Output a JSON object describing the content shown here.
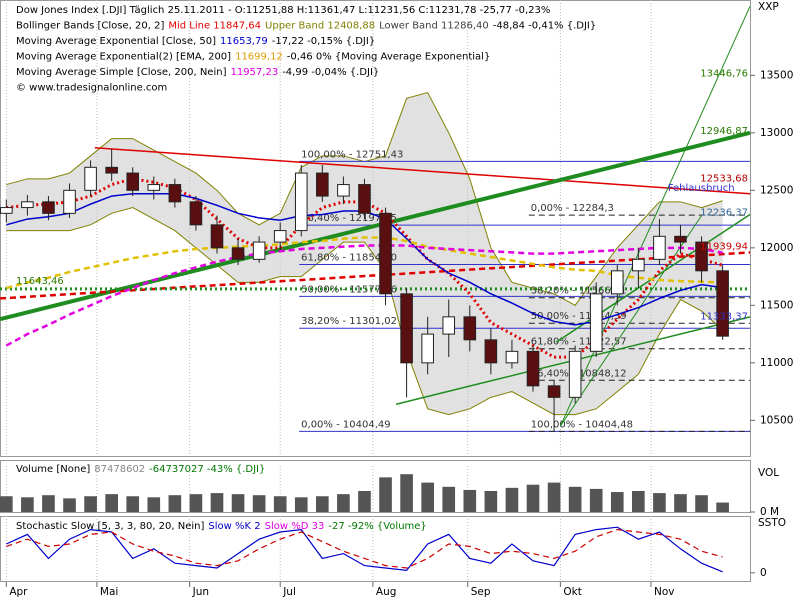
{
  "chart_data": [
    {
      "type": "candlestick",
      "axis_title": "XXP",
      "header": [
        [
          {
            "text": "Dow Jones Index [.DJI]  Täglich 25.11.2011  - O:11251,88 H:11361,47 L:11231,56 C:11231,78 -25,77 -0,23%",
            "color": "#000000"
          }
        ],
        [
          {
            "text": "Bollinger Bands [Close, 20, 2]",
            "color": "#000000"
          },
          {
            "text": "Mid Line 11847,64",
            "color": "#e00000"
          },
          {
            "text": "Upper Band 12408,88",
            "color": "#808000"
          },
          {
            "text": "Lower Band 11286,40",
            "color": "#404040"
          },
          {
            "text": "-48,84 -0,41% {.DJI}",
            "color": "#000000"
          }
        ],
        [
          {
            "text": "Moving Average Exponential [Close, 50]",
            "color": "#000000"
          },
          {
            "text": "11653,79",
            "color": "#0000cc"
          },
          {
            "text": "-17,22 -0,15% {.DJI}",
            "color": "#000000"
          }
        ],
        [
          {
            "text": "Moving Average Exponential(2) [EMA, 200]",
            "color": "#000000"
          },
          {
            "text": "11699,12",
            "color": "#e0a000"
          },
          {
            "text": "-0,46 0% {Moving Average Exponential}",
            "color": "#000000"
          }
        ],
        [
          {
            "text": "Moving Average Simple [Close, 200, Nein]",
            "color": "#000000"
          },
          {
            "text": "11957,23",
            "color": "#e000e0"
          },
          {
            "text": "-4,99 -0,04% {.DJI}",
            "color": "#000000"
          }
        ],
        [
          {
            "text": "© www.tradesignalonline.com",
            "color": "#000000"
          }
        ]
      ],
      "x": [
        0,
        1,
        2,
        3,
        4,
        5,
        6,
        7,
        8,
        9,
        10,
        11,
        12,
        13,
        14,
        15,
        16,
        17,
        18,
        19,
        20,
        21,
        22,
        23,
        24,
        25,
        26,
        27,
        28,
        29,
        30,
        31,
        32,
        33,
        34
      ],
      "open": [
        12300,
        12350,
        12400,
        12300,
        12500,
        12700,
        12650,
        12500,
        12550,
        12400,
        12200,
        12000,
        11900,
        12050,
        12150,
        12650,
        12450,
        12550,
        12300,
        11600,
        11000,
        11250,
        11400,
        11200,
        11000,
        11100,
        10800,
        10700,
        11100,
        11600,
        11800,
        11900,
        12100,
        12050,
        11800
      ],
      "high": [
        12420,
        12460,
        12450,
        12560,
        12760,
        12860,
        12700,
        12620,
        12600,
        12450,
        12280,
        12080,
        12100,
        12220,
        12720,
        12720,
        12620,
        12600,
        12350,
        11650,
        11400,
        11550,
        11500,
        11300,
        11200,
        11150,
        10850,
        11150,
        11700,
        11850,
        12000,
        12250,
        12200,
        12100,
        11850
      ],
      "low": [
        12220,
        12280,
        12240,
        12260,
        12450,
        12580,
        12450,
        12420,
        12350,
        12150,
        11950,
        11850,
        11870,
        11980,
        12100,
        12400,
        12380,
        12250,
        11500,
        10700,
        10900,
        11050,
        11100,
        10900,
        10950,
        10750,
        10404,
        10650,
        11050,
        11500,
        11650,
        11850,
        11950,
        11700,
        11200
      ],
      "close": [
        12350,
        12400,
        12300,
        12500,
        12700,
        12650,
        12500,
        12550,
        12400,
        12200,
        12000,
        11900,
        12050,
        12150,
        12650,
        12450,
        12550,
        12300,
        11600,
        11000,
        11250,
        11400,
        11200,
        11000,
        11100,
        10800,
        10700,
        11100,
        11600,
        11800,
        11900,
        12100,
        12050,
        11800,
        11232
      ],
      "up_color": "#ffffff",
      "down_color": "#5a1010",
      "band": {
        "color": "#808000",
        "fill": "#c8c8c8",
        "upper": [
          12550,
          12600,
          12600,
          12650,
          12800,
          12950,
          12950,
          12850,
          12750,
          12650,
          12500,
          12300,
          12200,
          12300,
          12700,
          12800,
          12800,
          12750,
          12800,
          13300,
          13350,
          13000,
          12600,
          12000,
          11700,
          11650,
          11600,
          11500,
          11750,
          12000,
          12200,
          12400,
          12400,
          12350,
          12409
        ],
        "lower": [
          12150,
          12150,
          12150,
          12150,
          12200,
          12300,
          12350,
          12250,
          12150,
          12000,
          11850,
          11700,
          11700,
          11750,
          11750,
          11900,
          12050,
          12050,
          11800,
          11100,
          10600,
          10550,
          10600,
          10700,
          10750,
          10650,
          10550,
          10550,
          10600,
          10750,
          10900,
          11250,
          11550,
          11450,
          11286
        ]
      },
      "series": [
        {
          "color": "#e00000",
          "style": "dotted",
          "values": [
            12350,
            12370,
            12380,
            12400,
            12450,
            12550,
            12600,
            12570,
            12520,
            12420,
            12250,
            12080,
            12000,
            12000,
            12200,
            12350,
            12400,
            12400,
            12300,
            12100,
            11900,
            11780,
            11600,
            11350,
            11250,
            11150,
            11050,
            11050,
            11200,
            11380,
            11550,
            11800,
            11950,
            11900,
            11848
          ]
        },
        {
          "color": "#0000cc",
          "style": "solid",
          "values": [
            12200,
            12250,
            12270,
            12300,
            12380,
            12450,
            12470,
            12470,
            12470,
            12430,
            12370,
            12300,
            12260,
            12240,
            12280,
            12290,
            12320,
            12320,
            12250,
            12080,
            11900,
            11780,
            11700,
            11600,
            11520,
            11430,
            11360,
            11330,
            11360,
            11420,
            11480,
            11560,
            11630,
            11680,
            11654
          ]
        },
        {
          "color": "#e0c000",
          "style": "dashed",
          "values": [
            11650,
            11700,
            11740,
            11790,
            11830,
            11870,
            11910,
            11940,
            11970,
            11990,
            12000,
            12010,
            12020,
            12030,
            12050,
            12060,
            12080,
            12090,
            12090,
            12060,
            12010,
            11980,
            11950,
            11920,
            11890,
            11860,
            11830,
            11810,
            11800,
            11760,
            11740,
            11720,
            11710,
            11705,
            11699
          ]
        },
        {
          "color": "#e000e0",
          "style": "dashed",
          "values": [
            11150,
            11250,
            11330,
            11420,
            11500,
            11580,
            11650,
            11720,
            11780,
            11830,
            11880,
            11920,
            11950,
            11970,
            11990,
            12000,
            12010,
            12020,
            12020,
            12020,
            12000,
            11990,
            11980,
            11970,
            11960,
            11950,
            11950,
            11960,
            11970,
            11980,
            11990,
            12000,
            12000,
            11990,
            11957
          ]
        }
      ],
      "lines": [
        {
          "x": [
            4.2,
            35.3
          ],
          "y": [
            12870,
            12470
          ],
          "color": "#e00000",
          "style": "solid"
        },
        {
          "x": [
            -0.3,
            35.3
          ],
          "y": [
            11380,
            13000
          ],
          "color": "#1e8c1e",
          "style": "thick"
        },
        {
          "x": [
            18.5,
            35.3
          ],
          "y": [
            10640,
            11400
          ],
          "color": "#1e8c1e",
          "style": "solid"
        },
        {
          "x": [
            26.1,
            35.3
          ],
          "y": [
            11180,
            12290
          ],
          "color": "#1e8c1e",
          "style": "solid"
        },
        {
          "x": [
            26.3,
            35.3
          ],
          "y": [
            10450,
            14100
          ],
          "color": "#1e8c1e",
          "style": "thin"
        },
        {
          "x": [
            26.3,
            33
          ],
          "y": [
            10450,
            12280
          ],
          "color": "#1e8c1e",
          "style": "thin"
        },
        {
          "x": [
            -0.3,
            35.3
          ],
          "y": [
            11560,
            11960
          ],
          "color": "#e00000",
          "style": "dashed"
        },
        {
          "x": [
            -0.3,
            35.3
          ],
          "y": [
            11643.46,
            11643.46
          ],
          "color": "#1e8c1e",
          "style": "dotted"
        }
      ],
      "fib": [
        {
          "from": 13.9,
          "color": "#3333cc",
          "style": "solid",
          "levels": [
            {
              "value": 12751.43,
              "label": "100,00% - 12751,43"
            },
            {
              "value": 12197.55,
              "label": "76,40% - 12197,55"
            },
            {
              "value": 11854.9,
              "label": "61,80% - 11854,90"
            },
            {
              "value": 11577.96,
              "label": "50,00% - 11577,96"
            },
            {
              "value": 11301.02,
              "label": "38,20% - 11301,02"
            },
            {
              "value": 10404.49,
              "label": "0,00% - 10404,49"
            }
          ]
        },
        {
          "from": 24.8,
          "color": "#222222",
          "style": "dashed",
          "levels": [
            {
              "value": 12284.3,
              "label": "0,00% - 12284,3"
            },
            {
              "value": 11566.21,
              "label": "38,20% - 11566,21"
            },
            {
              "value": 11344.39,
              "label": "50,00% - 11344,39"
            },
            {
              "value": 11122.57,
              "label": "61,80% - 11122,57"
            },
            {
              "value": 10848.12,
              "label": "76,40% - 10848,12"
            },
            {
              "value": 10404.48,
              "label": "100,00% - 10404,48"
            }
          ]
        }
      ],
      "price_labels": [
        {
          "value": 13446.76,
          "label": "13446,76",
          "color": "#2a7a00",
          "side": "right"
        },
        {
          "value": 12946.87,
          "label": "12946,87",
          "color": "#2a7a00",
          "side": "right"
        },
        {
          "value": 12533.68,
          "label": "12533,68",
          "color": "#b00000",
          "side": "right"
        },
        {
          "value": 12236.37,
          "label": "12236,37",
          "color": "#336699",
          "side": "right"
        },
        {
          "value": 11939.94,
          "label": "11939,94",
          "color": "#cc0000",
          "side": "right"
        },
        {
          "value": 11333.37,
          "label": "11333,37",
          "color": "#3333cc",
          "side": "right"
        },
        {
          "value": 11643.46,
          "label": "11643,46",
          "color": "#2a7a00",
          "side": "left"
        }
      ],
      "annotations": [
        {
          "text": "Fehlausbruch",
          "x": 31.4,
          "y": 12520,
          "color": "#3333cc"
        }
      ],
      "xlim": [
        -0.3,
        35.3
      ],
      "xticks": [
        {
          "value": 0,
          "label": "Apr"
        },
        {
          "value": 4.3,
          "label": "Mai"
        },
        {
          "value": 8.7,
          "label": "Jun"
        },
        {
          "value": 13.0,
          "label": "Jul"
        },
        {
          "value": 17.4,
          "label": "Aug"
        },
        {
          "value": 21.9,
          "label": "Sep"
        },
        {
          "value": 26.3,
          "label": "Okt"
        },
        {
          "value": 30.6,
          "label": "Nov"
        }
      ],
      "ylim": [
        10190,
        14120
      ],
      "yticks": [
        10500,
        11000,
        11500,
        12000,
        12500,
        13000,
        13500
      ]
    },
    {
      "type": "bar",
      "axis_title": "VOL",
      "header": [
        [
          {
            "text": "Volume [None]",
            "color": "#000000"
          },
          {
            "text": "87478602",
            "color": "#888888"
          },
          {
            "text": "-64737027 -43% {.DJI}",
            "color": "#007700"
          }
        ]
      ],
      "x": [
        0,
        1,
        2,
        3,
        4,
        5,
        6,
        7,
        8,
        9,
        10,
        11,
        12,
        13,
        14,
        15,
        16,
        17,
        18,
        19,
        20,
        21,
        22,
        23,
        24,
        25,
        26,
        27,
        28,
        29,
        30,
        31,
        32,
        33,
        34
      ],
      "values": [
        150,
        140,
        160,
        130,
        150,
        170,
        150,
        140,
        160,
        170,
        180,
        170,
        160,
        150,
        140,
        150,
        170,
        200,
        330,
        360,
        280,
        240,
        210,
        200,
        230,
        260,
        280,
        240,
        220,
        190,
        200,
        180,
        170,
        160,
        90
      ],
      "color": "#555555",
      "ylim": [
        0,
        400
      ],
      "yticks": [
        {
          "value": 0,
          "label": "0 M"
        }
      ]
    },
    {
      "type": "line",
      "axis_title": "SSTO",
      "header": [
        [
          {
            "text": "Stochastic Slow [5, 3, 3, 80, 20, Nein]",
            "color": "#000000"
          },
          {
            "text": "Slow %K 2",
            "color": "#0000cc"
          },
          {
            "text": "Slow %D 33",
            "color": "#e000e0"
          },
          {
            "text": "-27 -92% {Volume}",
            "color": "#007700"
          }
        ]
      ],
      "x": [
        0,
        1,
        2,
        3,
        4,
        5,
        6,
        7,
        8,
        9,
        10,
        11,
        12,
        13,
        14,
        15,
        16,
        17,
        18,
        19,
        20,
        21,
        22,
        23,
        24,
        25,
        26,
        27,
        28,
        29,
        30,
        31,
        32,
        33,
        34
      ],
      "series": [
        {
          "color": "#0000cc",
          "style": "solid",
          "values": [
            60,
            80,
            30,
            70,
            90,
            85,
            30,
            50,
            20,
            15,
            10,
            40,
            70,
            85,
            90,
            30,
            40,
            15,
            10,
            5,
            60,
            80,
            30,
            20,
            60,
            25,
            15,
            80,
            90,
            95,
            70,
            85,
            50,
            20,
            2
          ]
        },
        {
          "color": "#cc0000",
          "style": "dashed",
          "values": [
            55,
            70,
            55,
            60,
            80,
            85,
            60,
            45,
            35,
            20,
            15,
            25,
            50,
            70,
            85,
            65,
            45,
            30,
            15,
            10,
            30,
            60,
            55,
            40,
            45,
            40,
            30,
            45,
            75,
            90,
            85,
            80,
            70,
            45,
            33
          ]
        }
      ],
      "ylim": [
        -15,
        110
      ],
      "yticks": [
        0
      ]
    }
  ]
}
